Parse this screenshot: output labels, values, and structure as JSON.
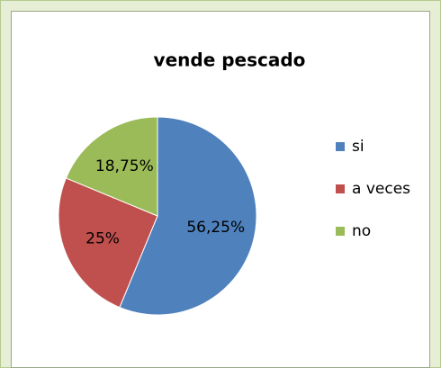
{
  "chart_data": {
    "type": "pie",
    "title": "vende pescado",
    "categories": [
      "si",
      "a veces",
      "no"
    ],
    "values": [
      56.25,
      25,
      18.75
    ],
    "value_labels": [
      "56,25%",
      "25%",
      "18,75%"
    ],
    "colors": [
      "#4f81bd",
      "#c0504d",
      "#9bbb59"
    ],
    "legend": "right"
  }
}
